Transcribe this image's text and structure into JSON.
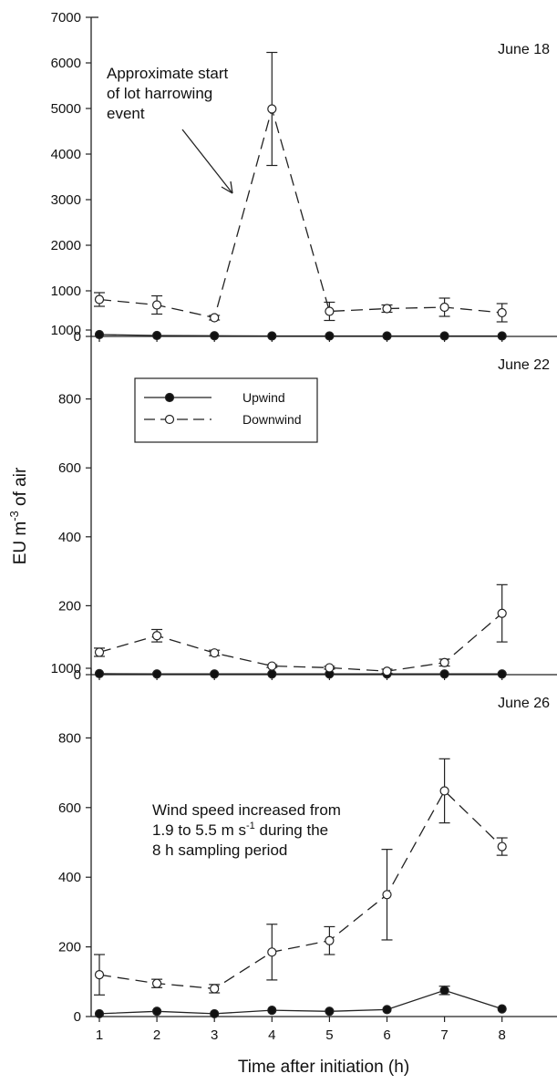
{
  "chart_data": {
    "type": "line",
    "shared_x": {
      "label": "Time after initiation (h)",
      "ticks": [
        1,
        2,
        3,
        4,
        5,
        6,
        7,
        8
      ]
    },
    "ylabel": {
      "main": "EU m",
      "sup": "-3",
      "tail": " of air"
    },
    "legend": {
      "placement": "top-left",
      "entries": [
        {
          "name": "Upwind",
          "marker": "filled-circle",
          "line": "solid"
        },
        {
          "name": "Downwind",
          "marker": "open-circle",
          "line": "dashed"
        }
      ]
    },
    "panels": [
      {
        "label": "June 18",
        "ylim": [
          0,
          7000
        ],
        "yticks": [
          0,
          1000,
          2000,
          3000,
          4000,
          5000,
          6000,
          7000
        ],
        "annotation": {
          "lines": [
            "Approximate start",
            "of lot harrowing",
            "event"
          ],
          "arrow": true
        },
        "series": [
          {
            "name": "Upwind",
            "x": [
              1,
              2,
              3,
              4,
              5,
              6,
              7,
              8
            ],
            "values": [
              40,
              20,
              15,
              10,
              10,
              10,
              10,
              10
            ],
            "err": [
              0,
              0,
              0,
              0,
              0,
              0,
              0,
              0
            ]
          },
          {
            "name": "Downwind",
            "x": [
              1,
              2,
              3,
              4,
              5,
              6,
              7,
              8
            ],
            "values": [
              810,
              690,
              410,
              4990,
              550,
              610,
              640,
              520
            ],
            "err": [
              150,
              200,
              50,
              1240,
              200,
              80,
              200,
              200
            ]
          }
        ]
      },
      {
        "label": "June 22",
        "ylim": [
          0,
          1000
        ],
        "yticks": [
          0,
          200,
          400,
          600,
          800,
          1000
        ],
        "series": [
          {
            "name": "Upwind",
            "x": [
              1,
              2,
              3,
              4,
              5,
              6,
              7,
              8
            ],
            "values": [
              3,
              2,
              2,
              2,
              2,
              2,
              2,
              2
            ],
            "err": [
              0,
              0,
              0,
              0,
              0,
              0,
              0,
              0
            ]
          },
          {
            "name": "Downwind",
            "x": [
              1,
              2,
              3,
              4,
              5,
              6,
              7,
              8
            ],
            "values": [
              65,
              113,
              63,
              25,
              20,
              10,
              35,
              178
            ],
            "err": [
              12,
              18,
              8,
              4,
              4,
              6,
              10,
              83
            ]
          }
        ]
      },
      {
        "label": "June 26",
        "ylim": [
          0,
          1000
        ],
        "yticks": [
          0,
          200,
          400,
          600,
          800,
          1000
        ],
        "annotation": {
          "lines": [
            {
              "text": "Wind speed increased from"
            },
            {
              "text": "1.9 to 5.5 m s",
              "sup": "-1",
              "tail": " during the"
            },
            {
              "text": "8 h sampling period"
            }
          ],
          "arrow": false
        },
        "series": [
          {
            "name": "Upwind",
            "x": [
              1,
              2,
              3,
              4,
              5,
              6,
              7,
              8
            ],
            "values": [
              8,
              15,
              8,
              18,
              15,
              20,
              75,
              22
            ],
            "err": [
              0,
              0,
              0,
              0,
              0,
              0,
              12,
              0
            ]
          },
          {
            "name": "Downwind",
            "x": [
              1,
              2,
              3,
              4,
              5,
              6,
              7,
              8
            ],
            "values": [
              120,
              95,
              80,
              185,
              218,
              350,
              648,
              488
            ],
            "err": [
              58,
              12,
              12,
              80,
              40,
              130,
              92,
              25
            ]
          }
        ]
      }
    ]
  }
}
